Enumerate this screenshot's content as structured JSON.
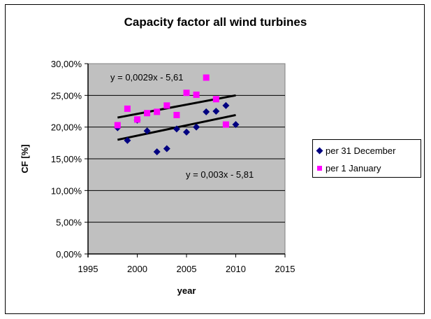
{
  "chart_data": {
    "type": "scatter",
    "title": "Capacity factor all wind turbines",
    "xlabel": "year",
    "ylabel": "CF [%]",
    "xlim": [
      1995,
      2015
    ],
    "ylim": [
      0,
      0.3
    ],
    "x_ticks": [
      1995,
      2000,
      2005,
      2010,
      2015
    ],
    "x_tick_labels": [
      "1995",
      "2000",
      "2005",
      "2010",
      "2015"
    ],
    "y_ticks": [
      0,
      0.05,
      0.1,
      0.15,
      0.2,
      0.25,
      0.3
    ],
    "y_tick_labels": [
      "0,00%",
      "5,00%",
      "10,00%",
      "15,00%",
      "20,00%",
      "25,00%",
      "30,00%"
    ],
    "grid": "horizontal major gridlines",
    "plot_background": "#c0c0c0",
    "legend_position": "right",
    "series": [
      {
        "name": "per 31 December",
        "marker": "diamond",
        "color": "#000080",
        "x": [
          1998,
          1999,
          2000,
          2001,
          2002,
          2003,
          2004,
          2005,
          2006,
          2007,
          2008,
          2009,
          2010
        ],
        "y": [
          0.199,
          0.179,
          0.211,
          0.194,
          0.161,
          0.166,
          0.197,
          0.192,
          0.2,
          0.224,
          0.225,
          0.234,
          0.204
        ],
        "trendline": {
          "equation": "y = 0,003x - 5,81",
          "x_range": [
            1998,
            2010
          ],
          "y_range": [
            0.18,
            0.219
          ]
        }
      },
      {
        "name": "per 1 January",
        "marker": "square",
        "color": "#ff00ff",
        "x": [
          1998,
          1999,
          2000,
          2001,
          2002,
          2003,
          2004,
          2005,
          2006,
          2007,
          2008,
          2009
        ],
        "y": [
          0.203,
          0.229,
          0.212,
          0.222,
          0.224,
          0.234,
          0.219,
          0.254,
          0.251,
          0.278,
          0.244,
          0.204
        ],
        "trendline": {
          "equation": "y = 0,0029x - 5,61",
          "x_range": [
            1998,
            2010
          ],
          "y_range": [
            0.215,
            0.25
          ]
        }
      }
    ]
  }
}
